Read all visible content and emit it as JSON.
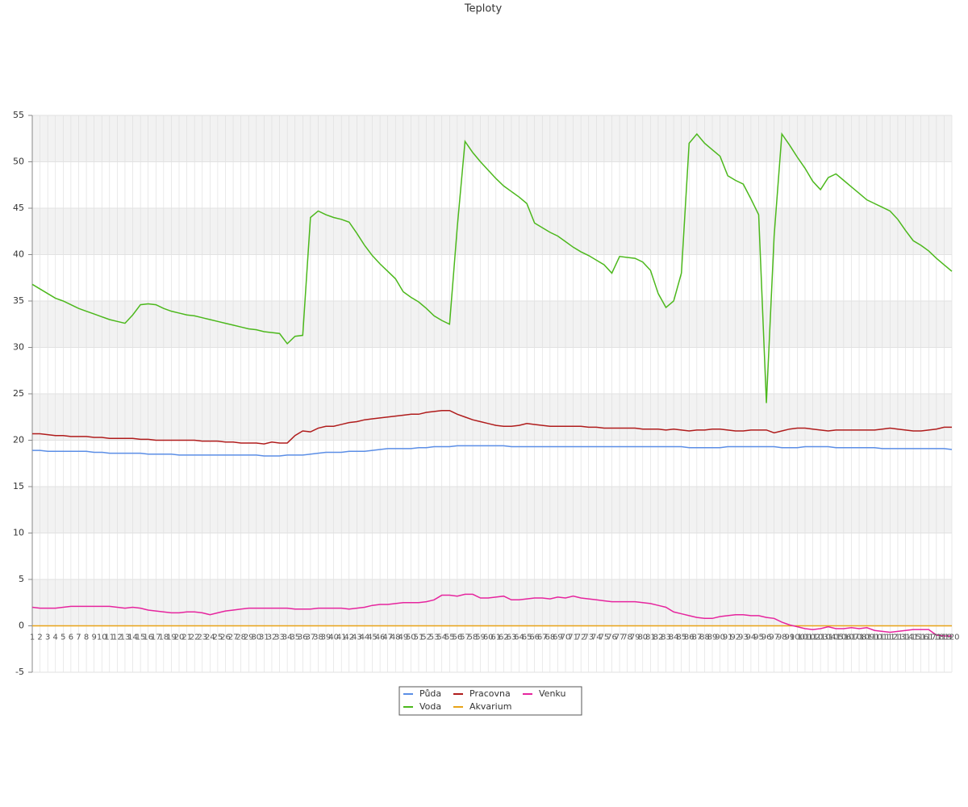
{
  "chart_data": {
    "type": "line",
    "title": "Teploty",
    "categories": [
      "1",
      "2",
      "3",
      "4",
      "5",
      "6",
      "7",
      "8",
      "9",
      "10",
      "11",
      "12",
      "13",
      "14",
      "15",
      "16",
      "17",
      "18",
      "19",
      "20",
      "21",
      "22",
      "23",
      "24",
      "25",
      "26",
      "27",
      "28",
      "29",
      "30",
      "31",
      "32",
      "33",
      "34",
      "35",
      "36",
      "37",
      "38",
      "39",
      "40",
      "41",
      "42",
      "43",
      "44",
      "45",
      "46",
      "47",
      "48",
      "49",
      "50",
      "51",
      "52",
      "53",
      "54",
      "55",
      "56",
      "57",
      "58",
      "59",
      "60",
      "61",
      "62",
      "63",
      "64",
      "65",
      "66",
      "67",
      "68",
      "69",
      "70",
      "71",
      "72",
      "73",
      "74",
      "75",
      "76",
      "77",
      "78",
      "79",
      "80",
      "81",
      "82",
      "83",
      "84",
      "85",
      "86",
      "87",
      "88",
      "89",
      "90",
      "91",
      "92",
      "93",
      "94",
      "95",
      "96",
      "97",
      "98",
      "99",
      "100",
      "101",
      "102",
      "103",
      "104",
      "105",
      "106",
      "107",
      "108",
      "109",
      "110",
      "111",
      "112",
      "113",
      "114",
      "115",
      "116",
      "117",
      "118",
      "119",
      "120"
    ],
    "ylim": [
      -5,
      55
    ],
    "yticks": [
      -5,
      0,
      5,
      10,
      15,
      20,
      25,
      30,
      35,
      40,
      45,
      50,
      55
    ],
    "grid": true,
    "series": [
      {
        "name": "Půda",
        "color": "#5b8ee6",
        "values": [
          18.9,
          18.9,
          18.8,
          18.8,
          18.8,
          18.8,
          18.8,
          18.8,
          18.7,
          18.7,
          18.6,
          18.6,
          18.6,
          18.6,
          18.6,
          18.5,
          18.5,
          18.5,
          18.5,
          18.4,
          18.4,
          18.4,
          18.4,
          18.4,
          18.4,
          18.4,
          18.4,
          18.4,
          18.4,
          18.4,
          18.3,
          18.3,
          18.3,
          18.4,
          18.4,
          18.4,
          18.5,
          18.6,
          18.7,
          18.7,
          18.7,
          18.8,
          18.8,
          18.8,
          18.9,
          19.0,
          19.1,
          19.1,
          19.1,
          19.1,
          19.2,
          19.2,
          19.3,
          19.3,
          19.3,
          19.4,
          19.4,
          19.4,
          19.4,
          19.4,
          19.4,
          19.4,
          19.3,
          19.3,
          19.3,
          19.3,
          19.3,
          19.3,
          19.3,
          19.3,
          19.3,
          19.3,
          19.3,
          19.3,
          19.3,
          19.3,
          19.3,
          19.3,
          19.3,
          19.3,
          19.3,
          19.3,
          19.3,
          19.3,
          19.3,
          19.2,
          19.2,
          19.2,
          19.2,
          19.2,
          19.3,
          19.3,
          19.3,
          19.3,
          19.3,
          19.3,
          19.3,
          19.2,
          19.2,
          19.2,
          19.3,
          19.3,
          19.3,
          19.3,
          19.2,
          19.2,
          19.2,
          19.2,
          19.2,
          19.2,
          19.1,
          19.1,
          19.1,
          19.1,
          19.1,
          19.1,
          19.1,
          19.1,
          19.1,
          19.0
        ]
      },
      {
        "name": "Voda",
        "color": "#4cb81c",
        "values": [
          36.8,
          36.3,
          35.8,
          35.3,
          35.0,
          34.6,
          34.2,
          33.9,
          33.6,
          33.3,
          33.0,
          32.8,
          32.6,
          33.5,
          34.6,
          34.7,
          34.6,
          34.2,
          33.9,
          33.7,
          33.5,
          33.4,
          33.2,
          33.0,
          32.8,
          32.6,
          32.4,
          32.2,
          32.0,
          31.9,
          31.7,
          31.6,
          31.5,
          30.4,
          31.2,
          31.3,
          44.0,
          44.7,
          44.3,
          44.0,
          43.8,
          43.5,
          42.3,
          41.0,
          39.9,
          39.0,
          38.2,
          37.4,
          36.0,
          35.4,
          34.9,
          34.2,
          33.4,
          32.9,
          32.5,
          43.0,
          52.2,
          51.0,
          50.0,
          49.1,
          48.2,
          47.4,
          46.8,
          46.2,
          45.5,
          43.4,
          42.9,
          42.4,
          42.0,
          41.4,
          40.8,
          40.3,
          39.9,
          39.4,
          38.9,
          38.0,
          39.8,
          39.7,
          39.6,
          39.2,
          38.3,
          35.8,
          34.3,
          35.0,
          38.0,
          52.0,
          53.0,
          52.0,
          51.3,
          50.6,
          48.5,
          48.0,
          47.6,
          46.0,
          44.3,
          24.0,
          42.0,
          53.0,
          51.8,
          50.5,
          49.3,
          47.9,
          47.0,
          48.3,
          48.7,
          48.0,
          47.3,
          46.6,
          45.9,
          45.5,
          45.1,
          44.7,
          43.8,
          42.6,
          41.5,
          41.0,
          40.4,
          39.6,
          38.9,
          38.2
        ]
      },
      {
        "name": "Pracovna",
        "color": "#b01c1c",
        "values": [
          20.7,
          20.7,
          20.6,
          20.5,
          20.5,
          20.4,
          20.4,
          20.4,
          20.3,
          20.3,
          20.2,
          20.2,
          20.2,
          20.2,
          20.1,
          20.1,
          20.0,
          20.0,
          20.0,
          20.0,
          20.0,
          20.0,
          19.9,
          19.9,
          19.9,
          19.8,
          19.8,
          19.7,
          19.7,
          19.7,
          19.6,
          19.8,
          19.7,
          19.7,
          20.5,
          21.0,
          20.9,
          21.3,
          21.5,
          21.5,
          21.7,
          21.9,
          22.0,
          22.2,
          22.3,
          22.4,
          22.5,
          22.6,
          22.7,
          22.8,
          22.8,
          23.0,
          23.1,
          23.2,
          23.2,
          22.8,
          22.5,
          22.2,
          22.0,
          21.8,
          21.6,
          21.5,
          21.5,
          21.6,
          21.8,
          21.7,
          21.6,
          21.5,
          21.5,
          21.5,
          21.5,
          21.5,
          21.4,
          21.4,
          21.3,
          21.3,
          21.3,
          21.3,
          21.3,
          21.2,
          21.2,
          21.2,
          21.1,
          21.2,
          21.1,
          21.0,
          21.1,
          21.1,
          21.2,
          21.2,
          21.1,
          21.0,
          21.0,
          21.1,
          21.1,
          21.1,
          20.8,
          21.0,
          21.2,
          21.3,
          21.3,
          21.2,
          21.1,
          21.0,
          21.1,
          21.1,
          21.1,
          21.1,
          21.1,
          21.1,
          21.2,
          21.3,
          21.2,
          21.1,
          21.0,
          21.0,
          21.1,
          21.2,
          21.4,
          21.4
        ]
      },
      {
        "name": "Akvarium",
        "color": "#e8a317",
        "values": [
          0,
          0,
          0,
          0,
          0,
          0,
          0,
          0,
          0,
          0,
          0,
          0,
          0,
          0,
          0,
          0,
          0,
          0,
          0,
          0,
          0,
          0,
          0,
          0,
          0,
          0,
          0,
          0,
          0,
          0,
          0,
          0,
          0,
          0,
          0,
          0,
          0,
          0,
          0,
          0,
          0,
          0,
          0,
          0,
          0,
          0,
          0,
          0,
          0,
          0,
          0,
          0,
          0,
          0,
          0,
          0,
          0,
          0,
          0,
          0,
          0,
          0,
          0,
          0,
          0,
          0,
          0,
          0,
          0,
          0,
          0,
          0,
          0,
          0,
          0,
          0,
          0,
          0,
          0,
          0,
          0,
          0,
          0,
          0,
          0,
          0,
          0,
          0,
          0,
          0,
          0,
          0,
          0,
          0,
          0,
          0,
          0,
          0,
          0,
          0,
          0,
          0,
          0,
          0,
          0,
          0,
          0,
          0,
          0,
          0,
          0,
          0,
          0,
          0,
          0,
          0,
          0,
          0,
          0,
          0
        ]
      },
      {
        "name": "Venku",
        "color": "#e6259e",
        "values": [
          2.0,
          1.9,
          1.9,
          1.9,
          2.0,
          2.1,
          2.1,
          2.1,
          2.1,
          2.1,
          2.1,
          2.0,
          1.9,
          2.0,
          1.9,
          1.7,
          1.6,
          1.5,
          1.4,
          1.4,
          1.5,
          1.5,
          1.4,
          1.2,
          1.4,
          1.6,
          1.7,
          1.8,
          1.9,
          1.9,
          1.9,
          1.9,
          1.9,
          1.9,
          1.8,
          1.8,
          1.8,
          1.9,
          1.9,
          1.9,
          1.9,
          1.8,
          1.9,
          2.0,
          2.2,
          2.3,
          2.3,
          2.4,
          2.5,
          2.5,
          2.5,
          2.6,
          2.8,
          3.3,
          3.3,
          3.2,
          3.4,
          3.4,
          3.0,
          3.0,
          3.1,
          3.2,
          2.8,
          2.8,
          2.9,
          3.0,
          3.0,
          2.9,
          3.1,
          3.0,
          3.2,
          3.0,
          2.9,
          2.8,
          2.7,
          2.6,
          2.6,
          2.6,
          2.6,
          2.5,
          2.4,
          2.2,
          2.0,
          1.5,
          1.3,
          1.1,
          0.9,
          0.8,
          0.8,
          1.0,
          1.1,
          1.2,
          1.2,
          1.1,
          1.1,
          0.9,
          0.8,
          0.4,
          0.1,
          -0.1,
          -0.3,
          -0.4,
          -0.3,
          -0.1,
          -0.3,
          -0.3,
          -0.2,
          -0.3,
          -0.2,
          -0.5,
          -0.6,
          -0.7,
          -0.6,
          -0.5,
          -0.4,
          -0.4,
          -0.4,
          -1.0,
          -1.1,
          -1.1
        ]
      }
    ]
  }
}
